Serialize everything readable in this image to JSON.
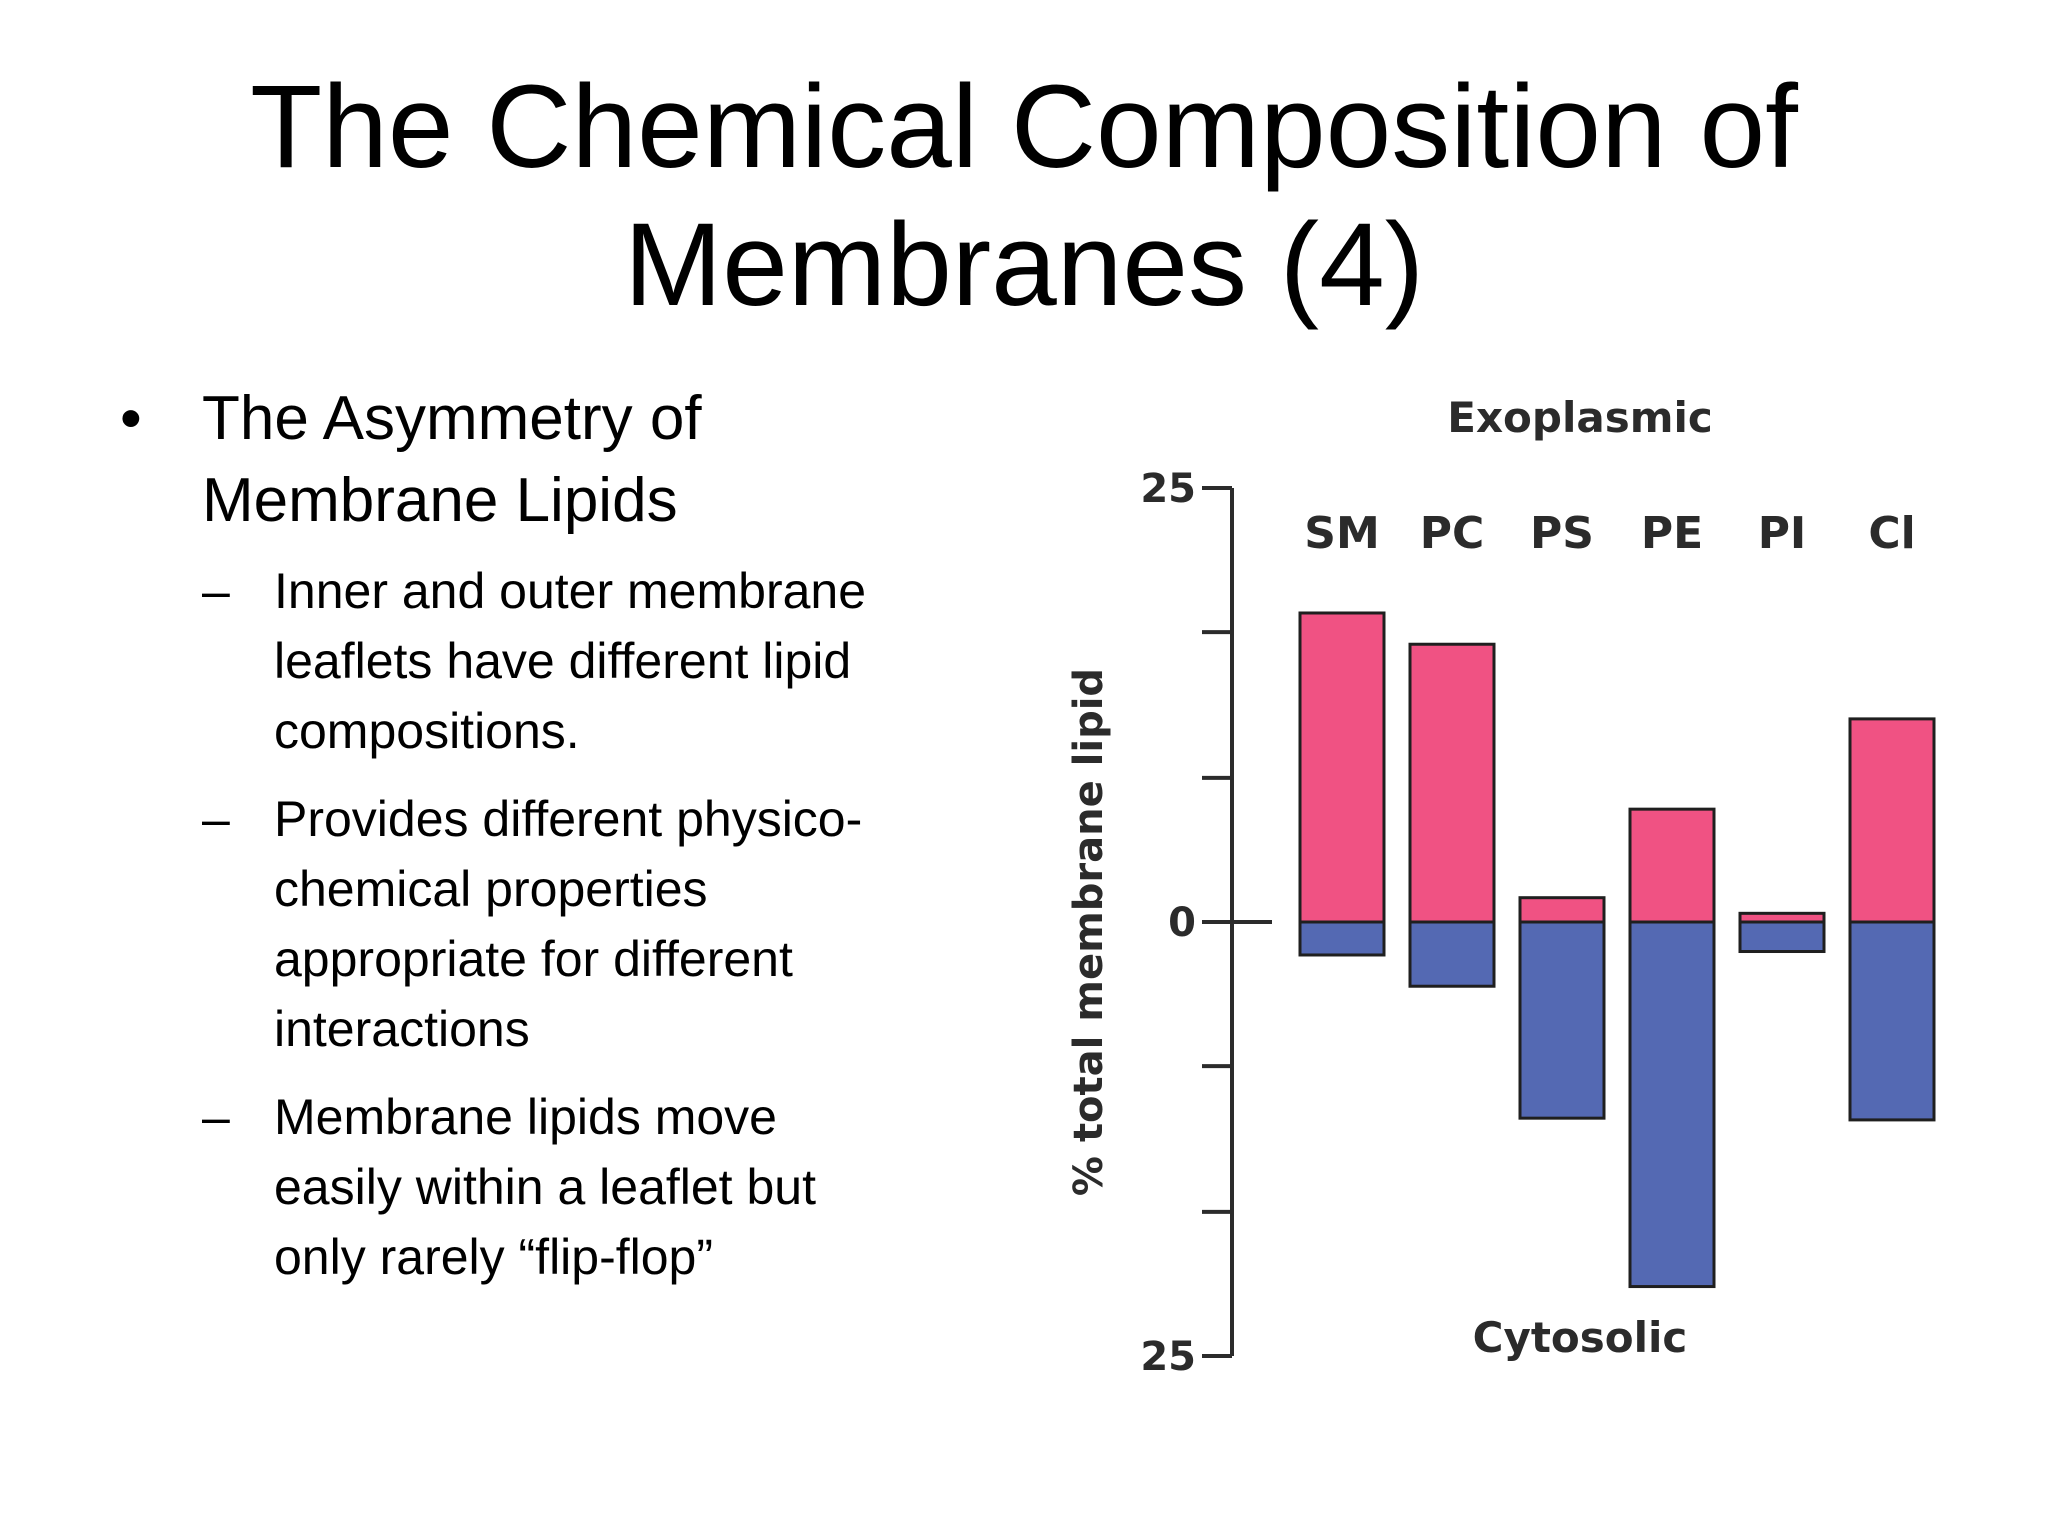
{
  "slide": {
    "title_line1": "The Chemical Composition of",
    "title_line2": "Membranes (4)",
    "bullet": {
      "marker": "•",
      "text_line1": "The Asymmetry of",
      "text_line2": "Membrane Lipids"
    },
    "sub_marker": "–",
    "sub_items": [
      [
        "Inner and outer membrane",
        "leaflets have different lipid",
        "compositions."
      ],
      [
        "Provides different physico-",
        "chemical properties",
        "appropriate for different",
        "interactions"
      ],
      [
        "Membrane lipids move",
        "easily within a leaflet but",
        "only rarely “flip-flop”"
      ]
    ]
  },
  "chart_data": {
    "type": "bar",
    "title": "",
    "ylabel": "% total membrane lipid",
    "top_label": "Exoplasmic",
    "bottom_label": "Cytosolic",
    "ylim": [
      -25,
      25
    ],
    "tick_labels": [
      {
        "value": 25,
        "label": "25"
      },
      {
        "value": 0,
        "label": "0"
      },
      {
        "value": -25,
        "label": "25"
      }
    ],
    "minor_tick_values": [
      16.7,
      8.3,
      -8.3,
      -16.7
    ],
    "categories": [
      "SM",
      "PC",
      "PS",
      "PE",
      "PI",
      "Cl"
    ],
    "series": [
      {
        "name": "Exoplasmic",
        "color": "#f05283",
        "values": [
          17.8,
          16,
          1.4,
          6.5,
          0.5,
          11.7
        ]
      },
      {
        "name": "Cytosolic",
        "color": "#5469b3",
        "values": [
          -1.9,
          -3.7,
          -11.3,
          -21,
          -1.7,
          -11.4
        ]
      }
    ]
  }
}
